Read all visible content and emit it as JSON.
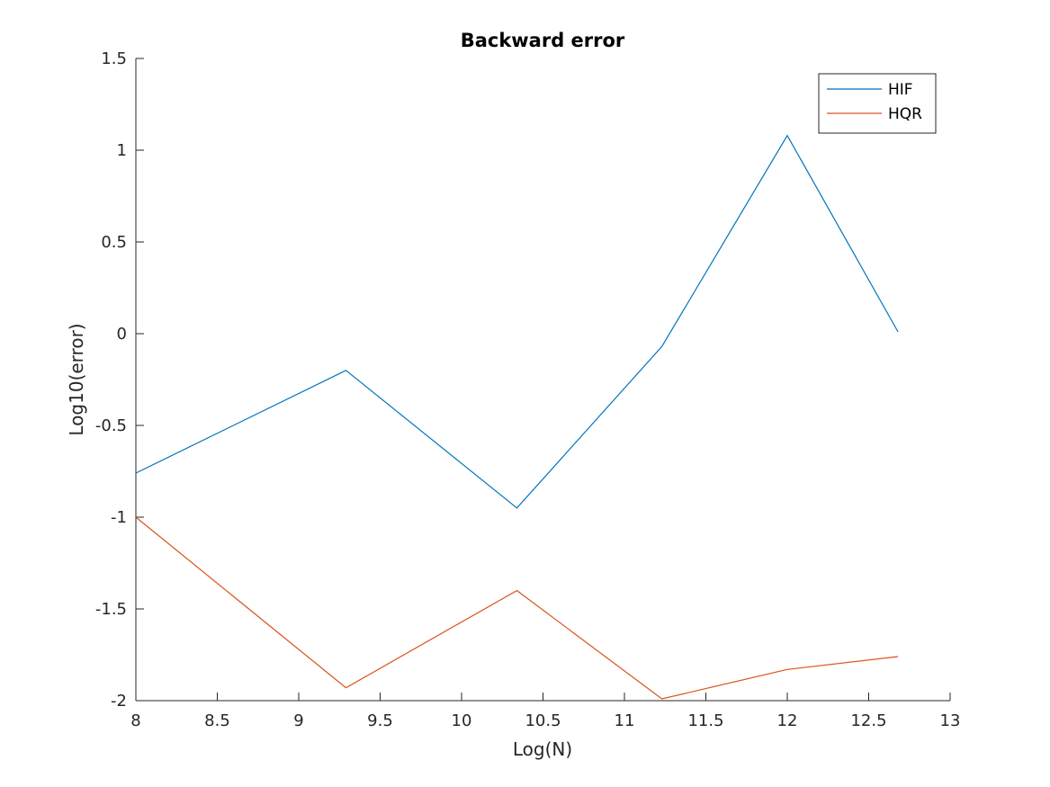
{
  "chart_data": {
    "type": "line",
    "title": "Backward error",
    "xlabel": "Log(N)",
    "ylabel": "Log10(error)",
    "xlim": [
      8,
      13
    ],
    "ylim": [
      -2,
      1.5
    ],
    "xticks": [
      8,
      8.5,
      9,
      9.5,
      10,
      10.5,
      11,
      11.5,
      12,
      12.5,
      13
    ],
    "xtick_labels": [
      "8",
      "8.5",
      "9",
      "9.5",
      "10",
      "10.5",
      "11",
      "11.5",
      "12",
      "12.5",
      "13"
    ],
    "yticks": [
      -2,
      -1.5,
      -1,
      -0.5,
      0,
      0.5,
      1,
      1.5
    ],
    "ytick_labels": [
      "-2",
      "-1.5",
      "-1",
      "-0.5",
      "0",
      "0.5",
      "1",
      "1.5"
    ],
    "grid": false,
    "legend_position": "top-right",
    "series": [
      {
        "name": "HIF",
        "color": "#0072BD",
        "x": [
          8,
          9.29,
          10.34,
          11.23,
          12.0,
          12.68
        ],
        "y": [
          -0.76,
          -0.2,
          -0.95,
          -0.07,
          1.08,
          0.01
        ]
      },
      {
        "name": "HQR",
        "color": "#D95319",
        "x": [
          8,
          9.29,
          10.34,
          11.23,
          12.0,
          12.68
        ],
        "y": [
          -1.0,
          -1.93,
          -1.4,
          -1.99,
          -1.83,
          -1.76
        ]
      }
    ]
  }
}
